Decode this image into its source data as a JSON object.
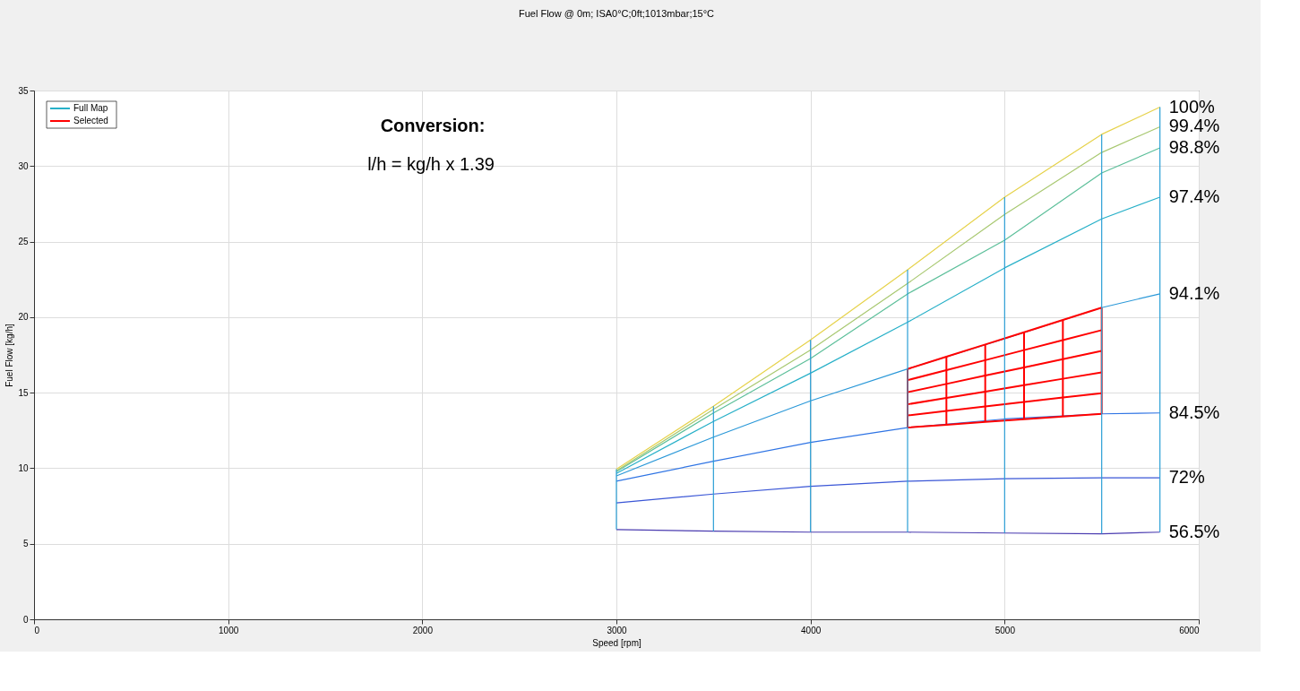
{
  "chart_data": {
    "type": "line",
    "title": "Fuel Flow @ 0m; ISA0°C;0ft;1013mbar;15°C",
    "xlabel": "Speed [rpm]",
    "ylabel": "Fuel Flow [kg/h]",
    "x": [
      3000,
      3500,
      4000,
      4500,
      5000,
      5500,
      5800
    ],
    "xlim": [
      0,
      6000
    ],
    "xticks": [
      0,
      1000,
      2000,
      3000,
      4000,
      5000,
      6000
    ],
    "ylim": [
      0,
      35
    ],
    "yticks": [
      0,
      5,
      10,
      15,
      20,
      25,
      30,
      35
    ],
    "grid": true,
    "legend": "top left",
    "annotations": [
      "Conversion:",
      "l/h = kg/h x 1.39",
      "Full Map"
    ],
    "series": [
      {
        "name": "56.5%",
        "color": "#4b3cb0",
        "values": [
          5.94,
          5.83,
          5.77,
          5.77,
          5.71,
          5.66,
          5.77
        ]
      },
      {
        "name": "72%",
        "color": "#3a56d6",
        "values": [
          7.71,
          8.29,
          8.8,
          9.14,
          9.31,
          9.37,
          9.37
        ]
      },
      {
        "name": "84.5%",
        "color": "#2f74e4",
        "values": [
          9.14,
          10.46,
          11.71,
          12.69,
          13.26,
          13.6,
          13.66
        ]
      },
      {
        "name": "94.1%",
        "color": "#2a98d8",
        "values": [
          9.49,
          12.06,
          14.46,
          16.57,
          18.57,
          20.63,
          21.54
        ]
      },
      {
        "name": "97.4%",
        "color": "#27b0c8",
        "values": [
          9.66,
          13.1,
          16.29,
          19.66,
          23.26,
          26.5,
          27.94
        ]
      },
      {
        "name": "98.8%",
        "color": "#5cbf9a",
        "values": [
          9.77,
          13.66,
          17.26,
          21.54,
          25.09,
          29.54,
          31.2
        ]
      },
      {
        "name": "99.4%",
        "color": "#a8c870",
        "values": [
          9.83,
          13.89,
          17.83,
          22.23,
          26.8,
          30.9,
          32.6
        ]
      },
      {
        "name": "100%",
        "color": "#e6d24a",
        "values": [
          9.94,
          14.1,
          18.5,
          23.14,
          27.94,
          32.1,
          33.9
        ]
      },
      {
        "name": "Selected",
        "color": "#ff0000",
        "x": [
          4500,
          4700,
          4900,
          5100,
          5300,
          5500
        ],
        "values": [
          12.69,
          12.88,
          13.06,
          13.24,
          13.42,
          13.6
        ]
      },
      {
        "color": "#ff0000",
        "x": [
          4500,
          4700,
          4900,
          5100,
          5300,
          5500
        ],
        "values": [
          13.49,
          13.79,
          14.09,
          14.38,
          14.68,
          14.97
        ]
      },
      {
        "color": "#ff0000",
        "x": [
          4500,
          4700,
          4900,
          5100,
          5300,
          5500
        ],
        "values": [
          14.23,
          14.65,
          15.07,
          15.5,
          15.92,
          16.34
        ]
      },
      {
        "color": "#ff0000",
        "x": [
          4500,
          4700,
          4900,
          5100,
          5300,
          5500
        ],
        "values": [
          15.03,
          15.58,
          16.13,
          16.67,
          17.22,
          17.77
        ]
      },
      {
        "color": "#ff0000",
        "x": [
          4500,
          4700,
          4900,
          5100,
          5300,
          5500
        ],
        "values": [
          15.83,
          16.49,
          17.15,
          17.82,
          18.48,
          19.14
        ]
      },
      {
        "color": "#ff0000",
        "x": [
          4500,
          4700,
          4900,
          5100,
          5300,
          5500
        ],
        "values": [
          16.57,
          17.38,
          18.19,
          19.0,
          19.81,
          20.63
        ]
      },
      {
        "color": "#ff0000",
        "x": [
          4500,
          4500
        ],
        "values": [
          12.69,
          16.57
        ]
      },
      {
        "color": "#ff0000",
        "x": [
          4700,
          4700
        ],
        "values": [
          12.88,
          17.38
        ]
      },
      {
        "color": "#ff0000",
        "x": [
          4900,
          4900
        ],
        "values": [
          13.06,
          18.19
        ]
      },
      {
        "color": "#ff0000",
        "x": [
          5100,
          5100
        ],
        "values": [
          13.24,
          19.0
        ]
      },
      {
        "color": "#ff0000",
        "x": [
          5300,
          5300
        ],
        "values": [
          13.42,
          19.81
        ]
      },
      {
        "color": "#ff0000",
        "x": [
          5500,
          5500
        ],
        "values": [
          13.6,
          20.63
        ]
      },
      {
        "color": "#2a9fd6",
        "x": [
          3000,
          3000
        ],
        "values": [
          5.94,
          9.94
        ]
      },
      {
        "color": "#2a9fd6",
        "x": [
          3500,
          3500
        ],
        "values": [
          5.83,
          14.1
        ]
      },
      {
        "color": "#2a9fd6",
        "x": [
          4000,
          4000
        ],
        "values": [
          5.77,
          18.5
        ]
      },
      {
        "color": "#2a9fd6",
        "x": [
          4500,
          4500
        ],
        "values": [
          5.77,
          23.14
        ]
      },
      {
        "color": "#2a9fd6",
        "x": [
          5000,
          5000
        ],
        "values": [
          5.71,
          27.94
        ]
      },
      {
        "color": "#2a9fd6",
        "x": [
          5500,
          5500
        ],
        "values": [
          5.66,
          32.1
        ]
      },
      {
        "color": "#2a9fd6",
        "x": [
          5800,
          5800
        ],
        "values": [
          5.77,
          33.9
        ]
      }
    ]
  }
}
